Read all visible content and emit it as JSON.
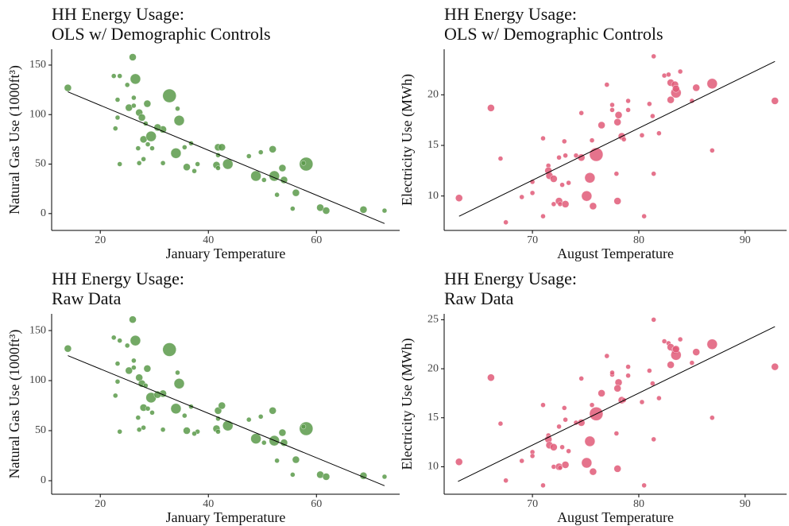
{
  "chart_data": [
    {
      "type": "scatter",
      "title": [
        "HH Energy Usage:",
        "OLS w/ Demographic Controls"
      ],
      "xlabel": "January Temperature",
      "ylabel": "Natural Gas Use (1000ft³)",
      "color": "#5b9a4a",
      "xlim": [
        11,
        75.4
      ],
      "ylim": [
        -17,
        166
      ],
      "xticks": [
        20,
        40,
        60
      ],
      "yticks": [
        0,
        50,
        100,
        150
      ],
      "x": [
        14,
        22.5,
        23.6,
        26,
        26.5,
        25,
        23.2,
        32.8,
        25.3,
        26.2,
        26.2,
        27.2,
        27.7,
        28.7,
        23.2,
        22.8,
        28.4,
        28,
        29.4,
        29.6,
        28.8,
        27,
        31.6,
        30.6,
        34.3,
        34.6,
        34,
        28,
        27.2,
        23.6,
        31.6,
        36.8,
        35.6,
        36,
        38,
        37.4,
        41.8,
        42.5,
        41.8,
        41.5,
        43.6,
        41.8,
        47.5,
        49.7,
        51.9,
        48.8,
        50.3,
        52.2,
        53.7,
        54,
        52.7,
        56.2,
        55.6,
        58.1,
        57.6,
        60.7,
        61.8,
        68.7,
        72.6
      ],
      "y": [
        127,
        139,
        139,
        158,
        136,
        130,
        115,
        119,
        107,
        109,
        117,
        102,
        97,
        111,
        97,
        86,
        91,
        75,
        78,
        66,
        70,
        66,
        85,
        87,
        106,
        94,
        61,
        55,
        51,
        50,
        51,
        71,
        67,
        47,
        50,
        43,
        67,
        67,
        59,
        49,
        50,
        46,
        58,
        62,
        65,
        38,
        34,
        38,
        46,
        34,
        19,
        21,
        5,
        50,
        51,
        6,
        3,
        4,
        3
      ],
      "sizes": [
        2,
        1,
        1,
        2,
        3,
        1,
        1,
        4,
        2,
        1,
        1,
        2,
        2,
        2,
        1,
        1,
        1,
        2,
        3,
        1,
        1,
        1,
        2,
        2,
        1,
        3,
        3,
        1,
        1,
        1,
        1,
        1,
        1,
        2,
        1,
        1,
        2,
        2,
        1,
        2,
        3,
        1,
        1,
        1,
        2,
        3,
        1,
        3,
        2,
        2,
        1,
        2,
        1,
        4,
        1,
        2,
        2,
        2,
        1
      ],
      "fit": {
        "x": [
          14,
          72.6
        ],
        "y": [
          123,
          -10
        ]
      }
    },
    {
      "type": "scatter",
      "title": [
        "HH Energy Usage:",
        "OLS w/ Demographic Controls"
      ],
      "xlabel": "August Temperature",
      "ylabel": "Electricity Use (MWh)",
      "color": "#e05a78",
      "xlim": [
        61.7,
        93.9
      ],
      "ylim": [
        6.6,
        24.5
      ],
      "xticks": [
        70,
        80,
        90
      ],
      "yticks": [
        10,
        15,
        20
      ],
      "x": [
        63.1,
        66.1,
        67,
        67.5,
        69,
        70,
        70,
        71,
        71,
        71.5,
        71.5,
        71.6,
        72,
        72,
        72.5,
        72.6,
        72.8,
        73,
        73.1,
        73.4,
        73.1,
        72.5,
        74.1,
        74.6,
        74.6,
        75.1,
        75.4,
        75.6,
        76,
        75.7,
        76.5,
        77,
        77.5,
        77.5,
        78.1,
        78,
        77.9,
        78,
        78.4,
        78.6,
        79,
        79,
        80.3,
        80.5,
        81,
        81.4,
        81.3,
        81.4,
        81.9,
        82.4,
        82.8,
        83,
        83,
        83.4,
        83.5,
        83.5,
        83.9,
        85,
        85.4,
        86.9,
        86.9,
        92.8
      ],
      "y": [
        9.8,
        18.7,
        13.7,
        7.4,
        9.9,
        11.4,
        10.3,
        15.7,
        8,
        13,
        12.5,
        12,
        11.7,
        9.2,
        9.5,
        9.2,
        11.1,
        15.4,
        14,
        11.3,
        9.2,
        13.8,
        14,
        18.2,
        13.8,
        10,
        11.8,
        15.5,
        14.1,
        9,
        17,
        21,
        18.5,
        19,
        18,
        17.3,
        12.2,
        9.5,
        15.9,
        15.6,
        19.4,
        18.5,
        16,
        8,
        19.1,
        23.8,
        17.9,
        12.2,
        16.2,
        21.9,
        22,
        21.2,
        19.5,
        21,
        20.2,
        20.6,
        22.3,
        19.4,
        20.7,
        21.1,
        14.5,
        19.4
      ],
      "sizes": [
        2,
        2,
        1,
        1,
        1,
        1,
        1,
        1,
        1,
        1,
        2,
        2,
        2,
        1,
        2,
        1,
        1,
        1,
        1,
        1,
        2,
        1,
        1,
        1,
        2,
        3,
        3,
        1,
        4,
        2,
        2,
        1,
        1,
        1,
        2,
        2,
        1,
        2,
        2,
        1,
        1,
        1,
        1,
        1,
        1,
        1,
        1,
        1,
        1,
        1,
        1,
        2,
        2,
        2,
        3,
        2,
        1,
        1,
        2,
        3,
        1,
        2
      ],
      "fit": {
        "x": [
          63.1,
          92.8
        ],
        "y": [
          8,
          23.3
        ]
      }
    },
    {
      "type": "scatter",
      "title": [
        "HH Energy Usage:",
        "Raw Data"
      ],
      "xlabel": "January Temperature",
      "ylabel": "Natural Gas Use (1000ft³)",
      "color": "#5b9a4a",
      "xlim": [
        11,
        75.4
      ],
      "ylim": [
        -13.5,
        166.7
      ],
      "xticks": [
        20,
        40,
        60
      ],
      "yticks": [
        0,
        50,
        100,
        150
      ],
      "x": [
        14,
        22.5,
        23.6,
        26,
        26.5,
        25,
        23.2,
        32.8,
        25.3,
        26.2,
        26.2,
        27.2,
        27.7,
        28.7,
        23.2,
        22.8,
        28.4,
        28,
        29.4,
        29.6,
        28.8,
        27,
        31.6,
        30.6,
        34.3,
        34.6,
        34,
        28,
        27.2,
        23.6,
        31.6,
        36.8,
        35.6,
        36,
        38,
        37.4,
        41.8,
        42.5,
        41.8,
        41.5,
        43.6,
        41.8,
        47.5,
        49.7,
        51.9,
        48.8,
        50.3,
        52.2,
        53.7,
        54,
        52.7,
        56.2,
        55.6,
        58.1,
        57.6,
        60.7,
        61.8,
        68.7,
        72.6
      ],
      "y": [
        132,
        143,
        140,
        161,
        140,
        135,
        117,
        131,
        110,
        113,
        120,
        103,
        97,
        112,
        99,
        85,
        95,
        73,
        83,
        68,
        72,
        63,
        87,
        86,
        108,
        97,
        72,
        53,
        51,
        49,
        51,
        74,
        65,
        50,
        49,
        47,
        70,
        75,
        62,
        52,
        55,
        49,
        61,
        64,
        70,
        42,
        38,
        40,
        48,
        38,
        20,
        21,
        6,
        52,
        54,
        6,
        4,
        5,
        4
      ],
      "sizes": [
        2,
        1,
        1,
        2,
        3,
        1,
        1,
        4,
        2,
        1,
        1,
        2,
        2,
        2,
        1,
        1,
        1,
        2,
        3,
        1,
        1,
        1,
        2,
        2,
        1,
        3,
        3,
        1,
        1,
        1,
        1,
        1,
        1,
        2,
        1,
        1,
        2,
        2,
        1,
        2,
        3,
        1,
        1,
        1,
        2,
        3,
        1,
        3,
        2,
        2,
        1,
        2,
        1,
        4,
        1,
        2,
        2,
        2,
        1
      ],
      "fit": {
        "x": [
          14,
          72.6
        ],
        "y": [
          125,
          -5
        ]
      }
    },
    {
      "type": "scatter",
      "title": [
        "HH Energy Usage:",
        "Raw Data"
      ],
      "xlabel": "August Temperature",
      "ylabel": "Electricity Use (MWh)",
      "color": "#e05a78",
      "xlim": [
        61.7,
        93.9
      ],
      "ylim": [
        7.2,
        25.6
      ],
      "xticks": [
        70,
        80,
        90
      ],
      "yticks": [
        10,
        15,
        20,
        25
      ],
      "x": [
        63.1,
        66.1,
        67,
        67.5,
        69,
        70,
        70,
        71,
        71,
        71.5,
        71.5,
        71.6,
        72,
        72,
        72.5,
        72.6,
        72.8,
        73,
        73.1,
        73.4,
        73.1,
        72.5,
        74.1,
        74.6,
        74.6,
        75.1,
        75.4,
        75.6,
        76,
        75.7,
        76.5,
        77,
        77.5,
        77.5,
        78.1,
        78,
        77.9,
        78,
        78.4,
        78.6,
        79,
        79,
        80.3,
        80.5,
        81,
        81.4,
        81.3,
        81.4,
        81.9,
        82.4,
        82.8,
        83,
        83,
        83.4,
        83.5,
        83.5,
        83.9,
        85,
        85.4,
        86.9,
        86.9,
        92.8
      ],
      "y": [
        10.5,
        19.1,
        14.4,
        8.6,
        10.6,
        11.5,
        11.1,
        16.3,
        8.1,
        13.2,
        12.8,
        12.2,
        12,
        10,
        10,
        9.9,
        12,
        16,
        14.8,
        11.6,
        10.2,
        14.1,
        14.5,
        19,
        14.5,
        10.4,
        12.6,
        16.3,
        15.4,
        9.5,
        17.5,
        21.3,
        19.4,
        19.6,
        18.6,
        18,
        13.4,
        9.8,
        16.8,
        16.8,
        20.2,
        19.3,
        16.6,
        8.1,
        19.8,
        25,
        18.5,
        12.8,
        17,
        22.8,
        22.6,
        22.2,
        20.4,
        21.9,
        21.4,
        22,
        23,
        20.6,
        21.7,
        22.5,
        15,
        20.2
      ],
      "sizes": [
        2,
        2,
        1,
        1,
        1,
        1,
        1,
        1,
        1,
        1,
        2,
        2,
        2,
        1,
        2,
        1,
        1,
        1,
        1,
        1,
        2,
        1,
        1,
        1,
        2,
        3,
        3,
        1,
        4,
        2,
        2,
        1,
        1,
        1,
        2,
        2,
        1,
        2,
        2,
        1,
        1,
        1,
        1,
        1,
        1,
        1,
        1,
        1,
        1,
        1,
        1,
        2,
        2,
        2,
        3,
        2,
        1,
        1,
        2,
        3,
        1,
        2
      ],
      "fit": {
        "x": [
          63,
          92.8
        ],
        "y": [
          8.5,
          24.3
        ]
      }
    }
  ]
}
